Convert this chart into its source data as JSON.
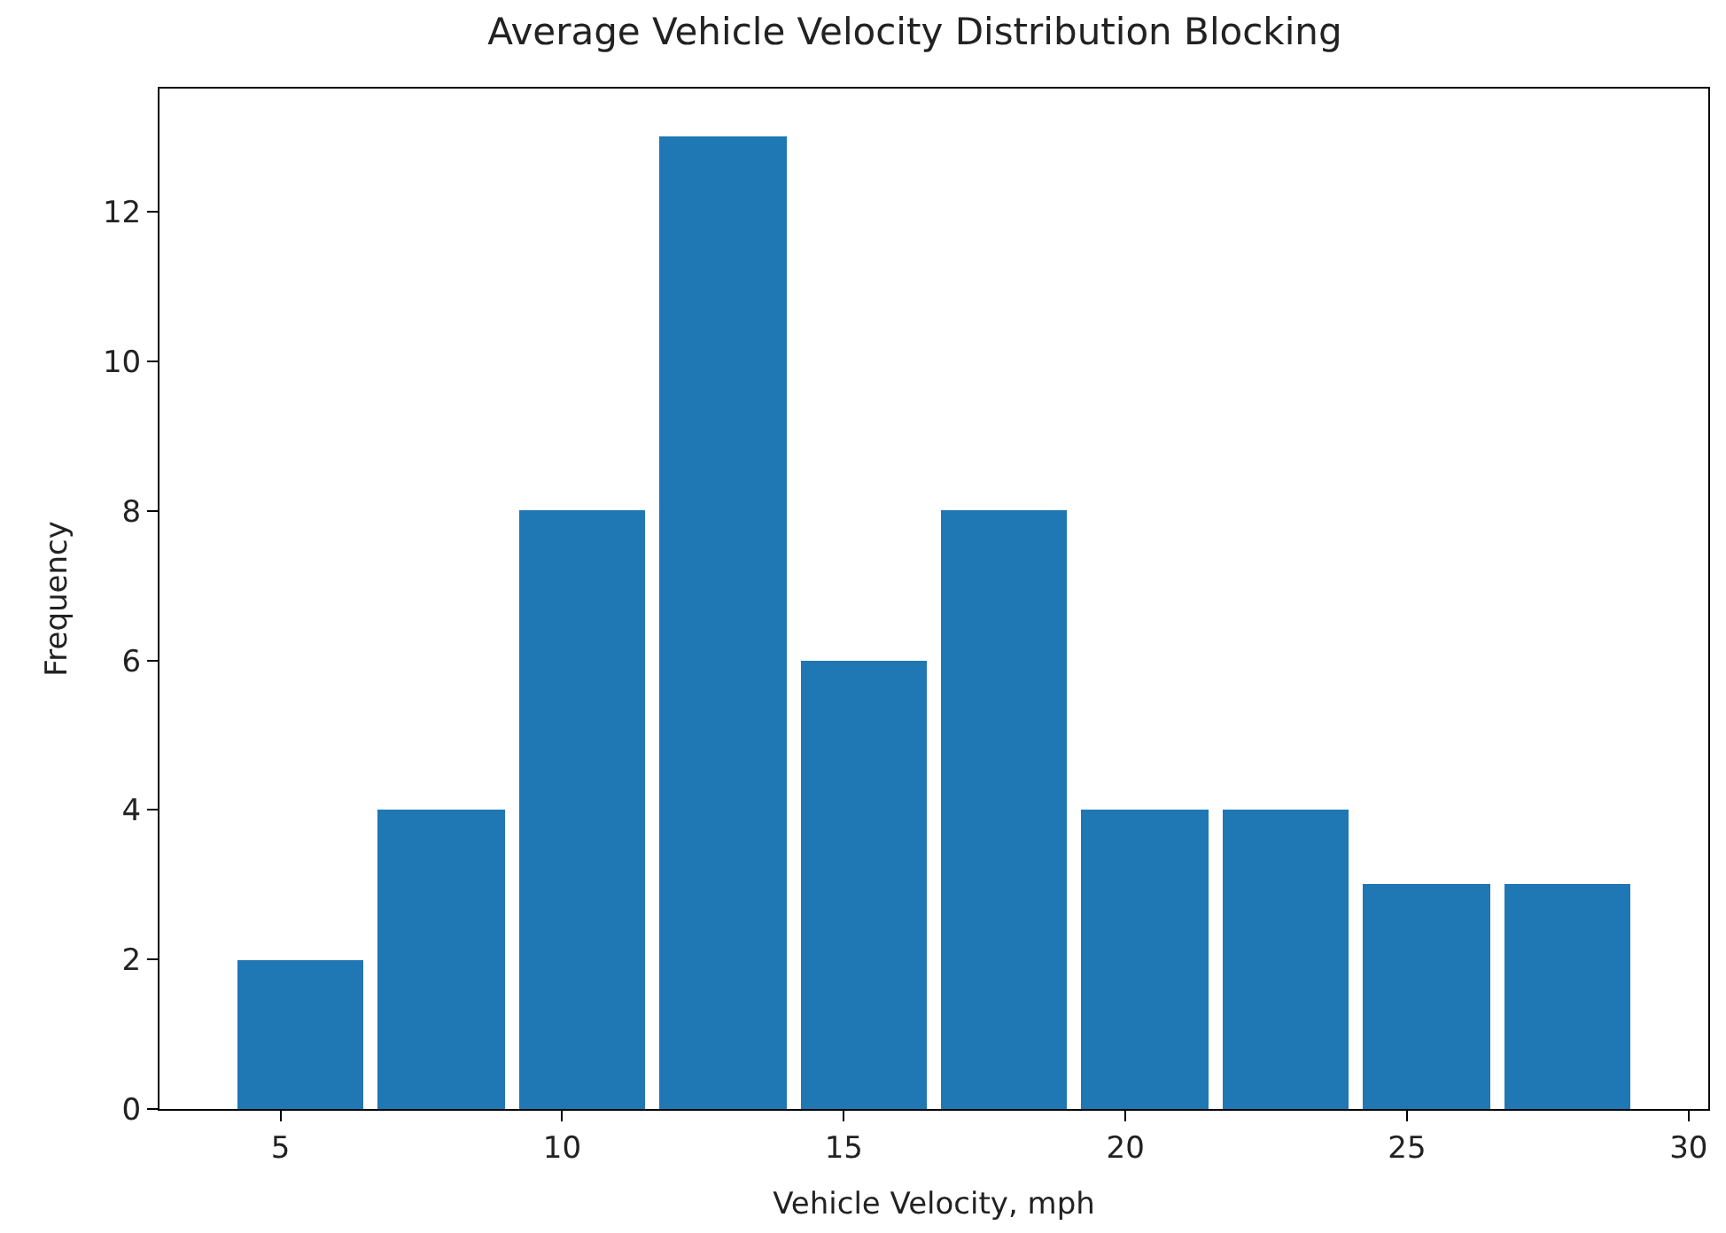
{
  "chart_data": {
    "type": "histogram",
    "title": "Average Vehicle Velocity Distribution Blocking",
    "xlabel": "Vehicle Velocity, mph",
    "ylabel": "Frequency",
    "bins": [
      4.1,
      6.6,
      9.1,
      11.6,
      14.1,
      16.6,
      19.1,
      21.6,
      24.1,
      26.6,
      29.1
    ],
    "values": [
      2,
      4,
      8,
      13,
      6,
      8,
      4,
      4,
      3,
      3
    ],
    "color": "#1f77b4",
    "xlim": [
      2.85,
      30.35
    ],
    "xticks": [
      5,
      10,
      15,
      20,
      25,
      30
    ],
    "ylim": [
      0,
      13.65
    ],
    "yticks": [
      0,
      2,
      4,
      6,
      8,
      10,
      12
    ]
  }
}
